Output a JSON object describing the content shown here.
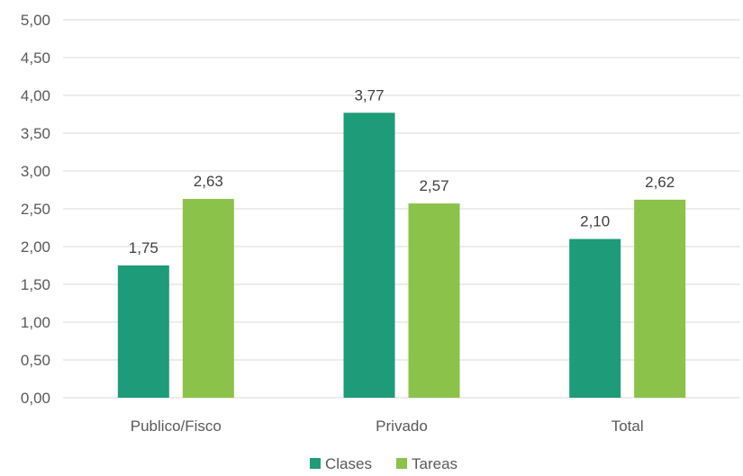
{
  "chart_data": {
    "type": "bar",
    "categories": [
      "Publico/Fisco",
      "Privado",
      "Total"
    ],
    "series": [
      {
        "name": "Clases",
        "values": [
          1.75,
          3.77,
          2.1
        ],
        "color": "#1e9b78"
      },
      {
        "name": "Tareas",
        "values": [
          2.63,
          2.57,
          2.62
        ],
        "color": "#8bc24a"
      }
    ],
    "ylim": [
      0,
      5
    ],
    "ytick_step": 0.5,
    "ytick_labels": [
      "0,00",
      "0,50",
      "1,00",
      "1,50",
      "2,00",
      "2,50",
      "3,00",
      "3,50",
      "4,00",
      "4,50",
      "5,00"
    ],
    "data_labels": [
      [
        "1,75",
        "3,77",
        "2,10"
      ],
      [
        "2,63",
        "2,57",
        "2,62"
      ]
    ],
    "grid": true,
    "legend_position": "bottom"
  }
}
